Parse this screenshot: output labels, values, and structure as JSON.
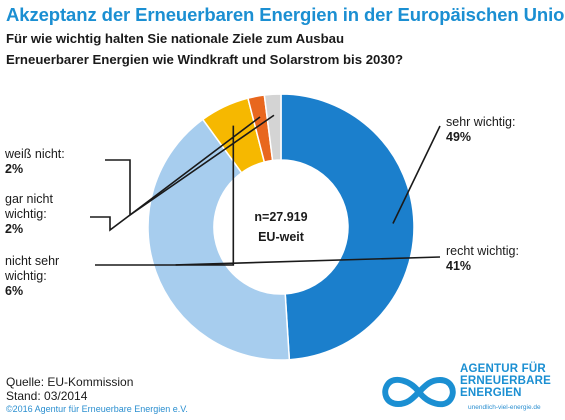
{
  "header": {
    "title": "Akzeptanz der Erneuerbaren Energien in der Europäischen Union",
    "subtitle_line1": "Für wie wichtig halten Sie nationale Ziele zum Ausbau",
    "subtitle_line2": "Erneuerbarer Energien wie Windkraft und Solarstrom bis 2030?"
  },
  "chart_data": {
    "type": "pie",
    "center_line1": "n=27.919",
    "center_line2": "EU-weit",
    "slices": [
      {
        "label_line1": "sehr wichtig:",
        "label_line2": "",
        "value_label": "49%",
        "value": 49,
        "color": "#1b7fcc"
      },
      {
        "label_line1": "recht wichtig:",
        "label_line2": "",
        "value_label": "41%",
        "value": 41,
        "color": "#a7cdee"
      },
      {
        "label_line1": "nicht sehr",
        "label_line2": "wichtig:",
        "value_label": "6%",
        "value": 6,
        "color": "#f6b800"
      },
      {
        "label_line1": "gar nicht",
        "label_line2": "wichtig:",
        "value_label": "2%",
        "value": 2,
        "color": "#e8671e"
      },
      {
        "label_line1": "weiß nicht:",
        "label_line2": "",
        "value_label": "2%",
        "value": 2,
        "color": "#d4d4d4"
      }
    ]
  },
  "footer": {
    "source": "Quelle: EU-Kommission",
    "date": "Stand: 03/2014",
    "copyright": "©2016 Agentur für Erneuerbare Energien e.V."
  },
  "logo": {
    "line1": "AGENTUR FÜR",
    "line2": "ERNEUERBARE",
    "line3": "ENERGIEN",
    "url": "unendlich-viel-energie.de",
    "color": "#1b8fd2"
  }
}
